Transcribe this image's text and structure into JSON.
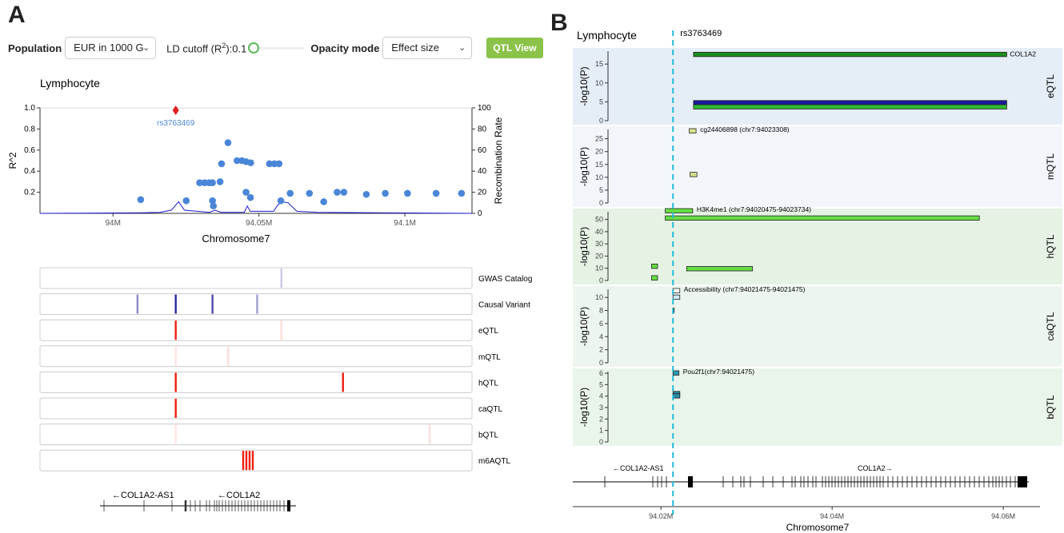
{
  "panels": {
    "a_label": "A",
    "b_label": "B"
  },
  "controls": {
    "population_label": "Population",
    "population_value": "EUR in 1000 G",
    "ld_label_prefix": "LD cutoff (R",
    "ld_label_sup": "2",
    "ld_label_suffix": "):0.1",
    "ld_value": 0.1,
    "opacity_label": "Opacity mode",
    "opacity_value": "Effect size",
    "qtl_view_button": "QTL View"
  },
  "colors": {
    "accent_green": "#8bc34a",
    "point_blue": "#4a86d8",
    "lead_red": "#e02020",
    "recomb_line": "#1a1ad0",
    "guide_cyan": "#22bcd8"
  },
  "chart_data": [
    {
      "type": "scatter",
      "title": "Lymphocyte",
      "xlabel": "Chromosome7",
      "ylabel": "R^2",
      "y2label": "Recombination Rate",
      "xlim": [
        93.975,
        94.123
      ],
      "ylim": [
        0,
        1.0
      ],
      "y2lim": [
        0,
        100
      ],
      "xticks": [
        {
          "v": 94.0,
          "label": "94M"
        },
        {
          "v": 94.05,
          "label": "94.05M"
        },
        {
          "v": 94.1,
          "label": "94.1M"
        }
      ],
      "yticks": [
        {
          "v": 0.2,
          "label": "0.2"
        },
        {
          "v": 0.4,
          "label": "0.4"
        },
        {
          "v": 0.6,
          "label": "0.6"
        },
        {
          "v": 0.8,
          "label": "0.8"
        },
        {
          "v": 1.0,
          "label": "1.0"
        }
      ],
      "y2ticks": [
        {
          "v": 0,
          "label": "0"
        },
        {
          "v": 20,
          "label": "20"
        },
        {
          "v": 40,
          "label": "40"
        },
        {
          "v": 60,
          "label": "60"
        },
        {
          "v": 80,
          "label": "80"
        },
        {
          "v": 100,
          "label": "100"
        }
      ],
      "lead_snp": {
        "name": "rs3763469",
        "x": 94.0215,
        "r2": 1.0
      },
      "points": [
        {
          "x": 94.0095,
          "y": 0.13
        },
        {
          "x": 94.0251,
          "y": 0.12
        },
        {
          "x": 94.0297,
          "y": 0.29
        },
        {
          "x": 94.0314,
          "y": 0.29
        },
        {
          "x": 94.0329,
          "y": 0.29
        },
        {
          "x": 94.0341,
          "y": 0.29
        },
        {
          "x": 94.0341,
          "y": 0.12
        },
        {
          "x": 94.0344,
          "y": 0.07
        },
        {
          "x": 94.0372,
          "y": 0.47
        },
        {
          "x": 94.0367,
          "y": 0.3
        },
        {
          "x": 94.0394,
          "y": 0.67
        },
        {
          "x": 94.0425,
          "y": 0.5
        },
        {
          "x": 94.0442,
          "y": 0.5
        },
        {
          "x": 94.0456,
          "y": 0.49
        },
        {
          "x": 94.0472,
          "y": 0.48
        },
        {
          "x": 94.0456,
          "y": 0.2
        },
        {
          "x": 94.0471,
          "y": 0.15
        },
        {
          "x": 94.0536,
          "y": 0.47
        },
        {
          "x": 94.0553,
          "y": 0.47
        },
        {
          "x": 94.0569,
          "y": 0.47
        },
        {
          "x": 94.0575,
          "y": 0.12
        },
        {
          "x": 94.0607,
          "y": 0.19
        },
        {
          "x": 94.0673,
          "y": 0.19
        },
        {
          "x": 94.0722,
          "y": 0.11
        },
        {
          "x": 94.0768,
          "y": 0.2
        },
        {
          "x": 94.0791,
          "y": 0.2
        },
        {
          "x": 94.0868,
          "y": 0.18
        },
        {
          "x": 94.0933,
          "y": 0.19
        },
        {
          "x": 94.1009,
          "y": 0.19
        },
        {
          "x": 94.1107,
          "y": 0.19
        },
        {
          "x": 94.1194,
          "y": 0.19
        }
      ],
      "recomb_rate": [
        {
          "x": 93.975,
          "y": 0
        },
        {
          "x": 94.01,
          "y": 0.5
        },
        {
          "x": 94.016,
          "y": 1
        },
        {
          "x": 94.02,
          "y": 3
        },
        {
          "x": 94.0225,
          "y": 11
        },
        {
          "x": 94.0245,
          "y": 3
        },
        {
          "x": 94.033,
          "y": 1
        },
        {
          "x": 94.035,
          "y": 3
        },
        {
          "x": 94.037,
          "y": 1
        },
        {
          "x": 94.045,
          "y": 1
        },
        {
          "x": 94.046,
          "y": 7
        },
        {
          "x": 94.047,
          "y": 2
        },
        {
          "x": 94.055,
          "y": 2
        },
        {
          "x": 94.0565,
          "y": 8
        },
        {
          "x": 94.058,
          "y": 11
        },
        {
          "x": 94.06,
          "y": 10
        },
        {
          "x": 94.063,
          "y": 2
        },
        {
          "x": 94.07,
          "y": 1
        },
        {
          "x": 94.123,
          "y": 0
        }
      ]
    },
    {
      "type": "heatmap",
      "tracks": [
        {
          "name": "GWAS Catalog",
          "marks": [
            {
              "x": 94.0577,
              "intensity": 0.25
            }
          ]
        },
        {
          "name": "Causal Variant",
          "marks": [
            {
              "x": 94.0084,
              "intensity": 0.55
            },
            {
              "x": 94.0215,
              "intensity": 1.0
            },
            {
              "x": 94.0341,
              "intensity": 0.85
            },
            {
              "x": 94.0494,
              "intensity": 0.45
            }
          ]
        },
        {
          "name": "eQTL",
          "marks": [
            {
              "x": 94.0215,
              "intensity": 1.0
            },
            {
              "x": 94.0577,
              "intensity": 0.15
            }
          ]
        },
        {
          "name": "mQTL",
          "marks": [
            {
              "x": 94.0215,
              "intensity": 0.12
            },
            {
              "x": 94.0395,
              "intensity": 0.15
            }
          ]
        },
        {
          "name": "hQTL",
          "marks": [
            {
              "x": 94.0215,
              "intensity": 1.0
            },
            {
              "x": 94.0788,
              "intensity": 1.0
            }
          ]
        },
        {
          "name": "caQTL",
          "marks": [
            {
              "x": 94.0215,
              "intensity": 1.0
            }
          ]
        },
        {
          "name": "bQTL",
          "marks": [
            {
              "x": 94.0215,
              "intensity": 0.12
            },
            {
              "x": 94.1085,
              "intensity": 0.15
            }
          ]
        },
        {
          "name": "m6AQTL",
          "marks": [
            {
              "x": 94.0446,
              "intensity": 1.0
            },
            {
              "x": 94.0457,
              "intensity": 1.0
            },
            {
              "x": 94.0468,
              "intensity": 1.0
            },
            {
              "x": 94.0479,
              "intensity": 1.0
            }
          ]
        }
      ],
      "genes": [
        {
          "label": "←COL1A2-AS1"
        },
        {
          "label": "←COL1A2"
        }
      ],
      "xlabel": "Chromosome7"
    },
    {
      "type": "bar",
      "title": "Lymphocyte",
      "snp_label": "rs3763469",
      "snp_x": 94.0214,
      "xlim": [
        94.0096,
        94.0627
      ],
      "xticks": [
        {
          "v": 94.02,
          "label": "94.02M"
        },
        {
          "v": 94.04,
          "label": "94.04M"
        },
        {
          "v": 94.06,
          "label": "94.06M"
        }
      ],
      "xlabel": "Chromosome7",
      "ylabel": "-log10(P)",
      "tracks": [
        {
          "name": "eQTL",
          "ymax": 18,
          "yticks": [
            0,
            5,
            10,
            15
          ],
          "bg": "#e5edf6",
          "features": [
            {
              "x0": 94.0238,
              "x1": 94.0604,
              "y": 17.5,
              "fill": "#1e8c1e",
              "label": "COL1A2",
              "label_pos": "right"
            },
            {
              "x0": 94.0238,
              "x1": 94.0604,
              "y": 4.7,
              "fill": "#1a1a9a",
              "label": ""
            },
            {
              "x0": 94.0238,
              "x1": 94.0604,
              "y": 3.6,
              "fill": "#33b833",
              "label": ""
            }
          ]
        },
        {
          "name": "mQTL",
          "ymax": 28,
          "yticks": [
            0,
            5,
            10,
            15,
            20,
            25
          ],
          "bg": "#f2f6fb",
          "features": [
            {
              "x0": 94.0233,
              "x1": 94.0241,
              "y": 28,
              "fill": "#d4e08a",
              "label": "cg24406898 (chr7:94023308)",
              "label_pos": "after"
            },
            {
              "x0": 94.0234,
              "x1": 94.0242,
              "y": 11,
              "fill": "#d4e08a",
              "label": ""
            }
          ]
        },
        {
          "name": "hQTL",
          "ymax": 55,
          "yticks": [
            0,
            10,
            20,
            30,
            40,
            50
          ],
          "bg": "#e5f2e4",
          "features": [
            {
              "x0": 94.0205,
              "x1": 94.0237,
              "y": 57,
              "fill": "#66dd44",
              "label": "H3K4me1 (chr7:94020475-94023734)",
              "label_pos": "after"
            },
            {
              "x0": 94.0205,
              "x1": 94.0572,
              "y": 51,
              "fill": "#66dd44",
              "label": ""
            },
            {
              "x0": 94.0189,
              "x1": 94.0196,
              "y": 11.5,
              "fill": "#66dd44",
              "label": ""
            },
            {
              "x0": 94.0189,
              "x1": 94.0196,
              "y": 2,
              "fill": "#66dd44",
              "label": ""
            },
            {
              "x0": 94.023,
              "x1": 94.0307,
              "y": 9.5,
              "fill": "#66dd44",
              "label": ""
            }
          ]
        },
        {
          "name": "caQTL",
          "ymax": 11,
          "yticks": [
            0,
            2,
            4,
            6,
            8,
            10
          ],
          "bg": "#edf6ee",
          "features": [
            {
              "x0": 94.0214,
              "x1": 94.0222,
              "y": 11,
              "fill": "#ffffff",
              "label": "Accessibility (chr7:94021475-94021475)",
              "label_pos": "after"
            },
            {
              "x0": 94.0214,
              "x1": 94.0222,
              "y": 10,
              "fill": "#cfe8ff",
              "label": ""
            },
            {
              "x0": 94.0214,
              "x1": 94.0215,
              "y": 8,
              "fill": "#555555",
              "label": ""
            }
          ]
        },
        {
          "name": "bQTL",
          "ymax": 6,
          "yticks": [
            0,
            1,
            2,
            3,
            4,
            5,
            6
          ],
          "bg": "#e9f5ea",
          "features": [
            {
              "x0": 94.0214,
              "x1": 94.0221,
              "y": 6,
              "fill": "#2a9ab0",
              "label": "Pou2f1(chr7:94021475)",
              "label_pos": "after"
            },
            {
              "x0": 94.0214,
              "x1": 94.0222,
              "y": 4.2,
              "fill": "#2a8aa0",
              "label": ""
            },
            {
              "x0": 94.0214,
              "x1": 94.0222,
              "y": 4.0,
              "fill": "#2a8aa0",
              "label": ""
            }
          ]
        }
      ],
      "genes": [
        {
          "label": "←COL1A2-AS1"
        },
        {
          "label": "COL1A2→"
        }
      ]
    }
  ]
}
